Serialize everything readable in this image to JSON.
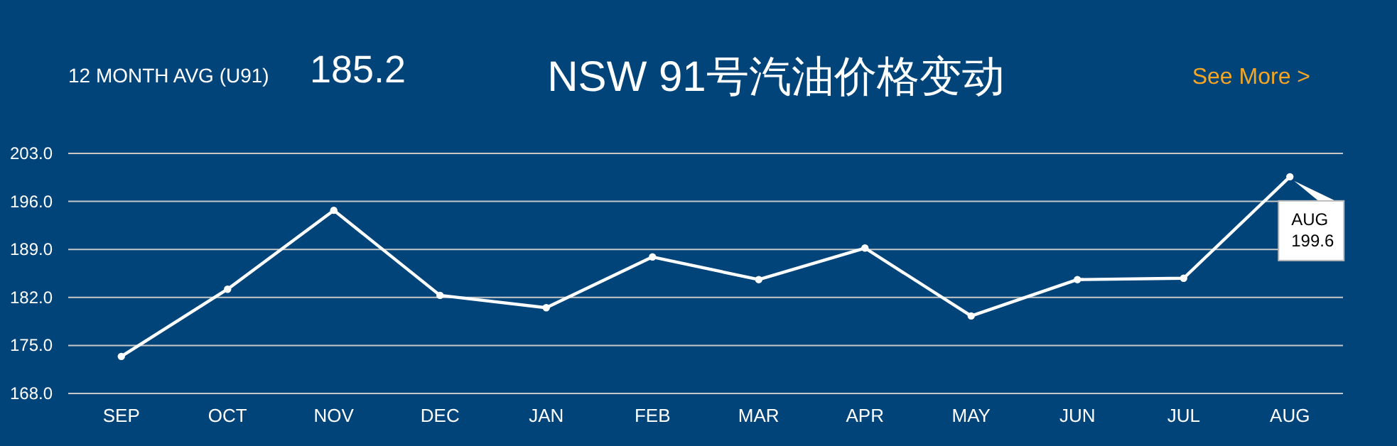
{
  "chart_data": {
    "type": "line",
    "title": "NSW 91号汽油价格变动",
    "categories": [
      "SEP",
      "OCT",
      "NOV",
      "DEC",
      "JAN",
      "FEB",
      "MAR",
      "APR",
      "MAY",
      "JUN",
      "JUL",
      "AUG"
    ],
    "series": [
      {
        "color": "#ffffff",
        "values": [
          173.4,
          183.2,
          194.7,
          182.3,
          180.5,
          187.9,
          184.6,
          189.2,
          179.3,
          184.6,
          184.8,
          199.6
        ]
      }
    ],
    "ylim": [
      168,
      203
    ],
    "yticks": [
      {
        "value": 168,
        "label": "168.0"
      },
      {
        "value": 175,
        "label": "175.0"
      },
      {
        "value": 182,
        "label": "182.0"
      },
      {
        "value": 189,
        "label": "189.0"
      },
      {
        "value": 196,
        "label": "196.0"
      },
      {
        "value": 203,
        "label": "203.0"
      }
    ],
    "grid": "y",
    "marker": "circle",
    "line_style": "solid",
    "annotations": [
      "12 MONTH AVG (U91)",
      "185.2",
      "See More >",
      {
        "text": "AUG 199.6",
        "x": "AUG",
        "y": 199.6
      }
    ]
  }
}
